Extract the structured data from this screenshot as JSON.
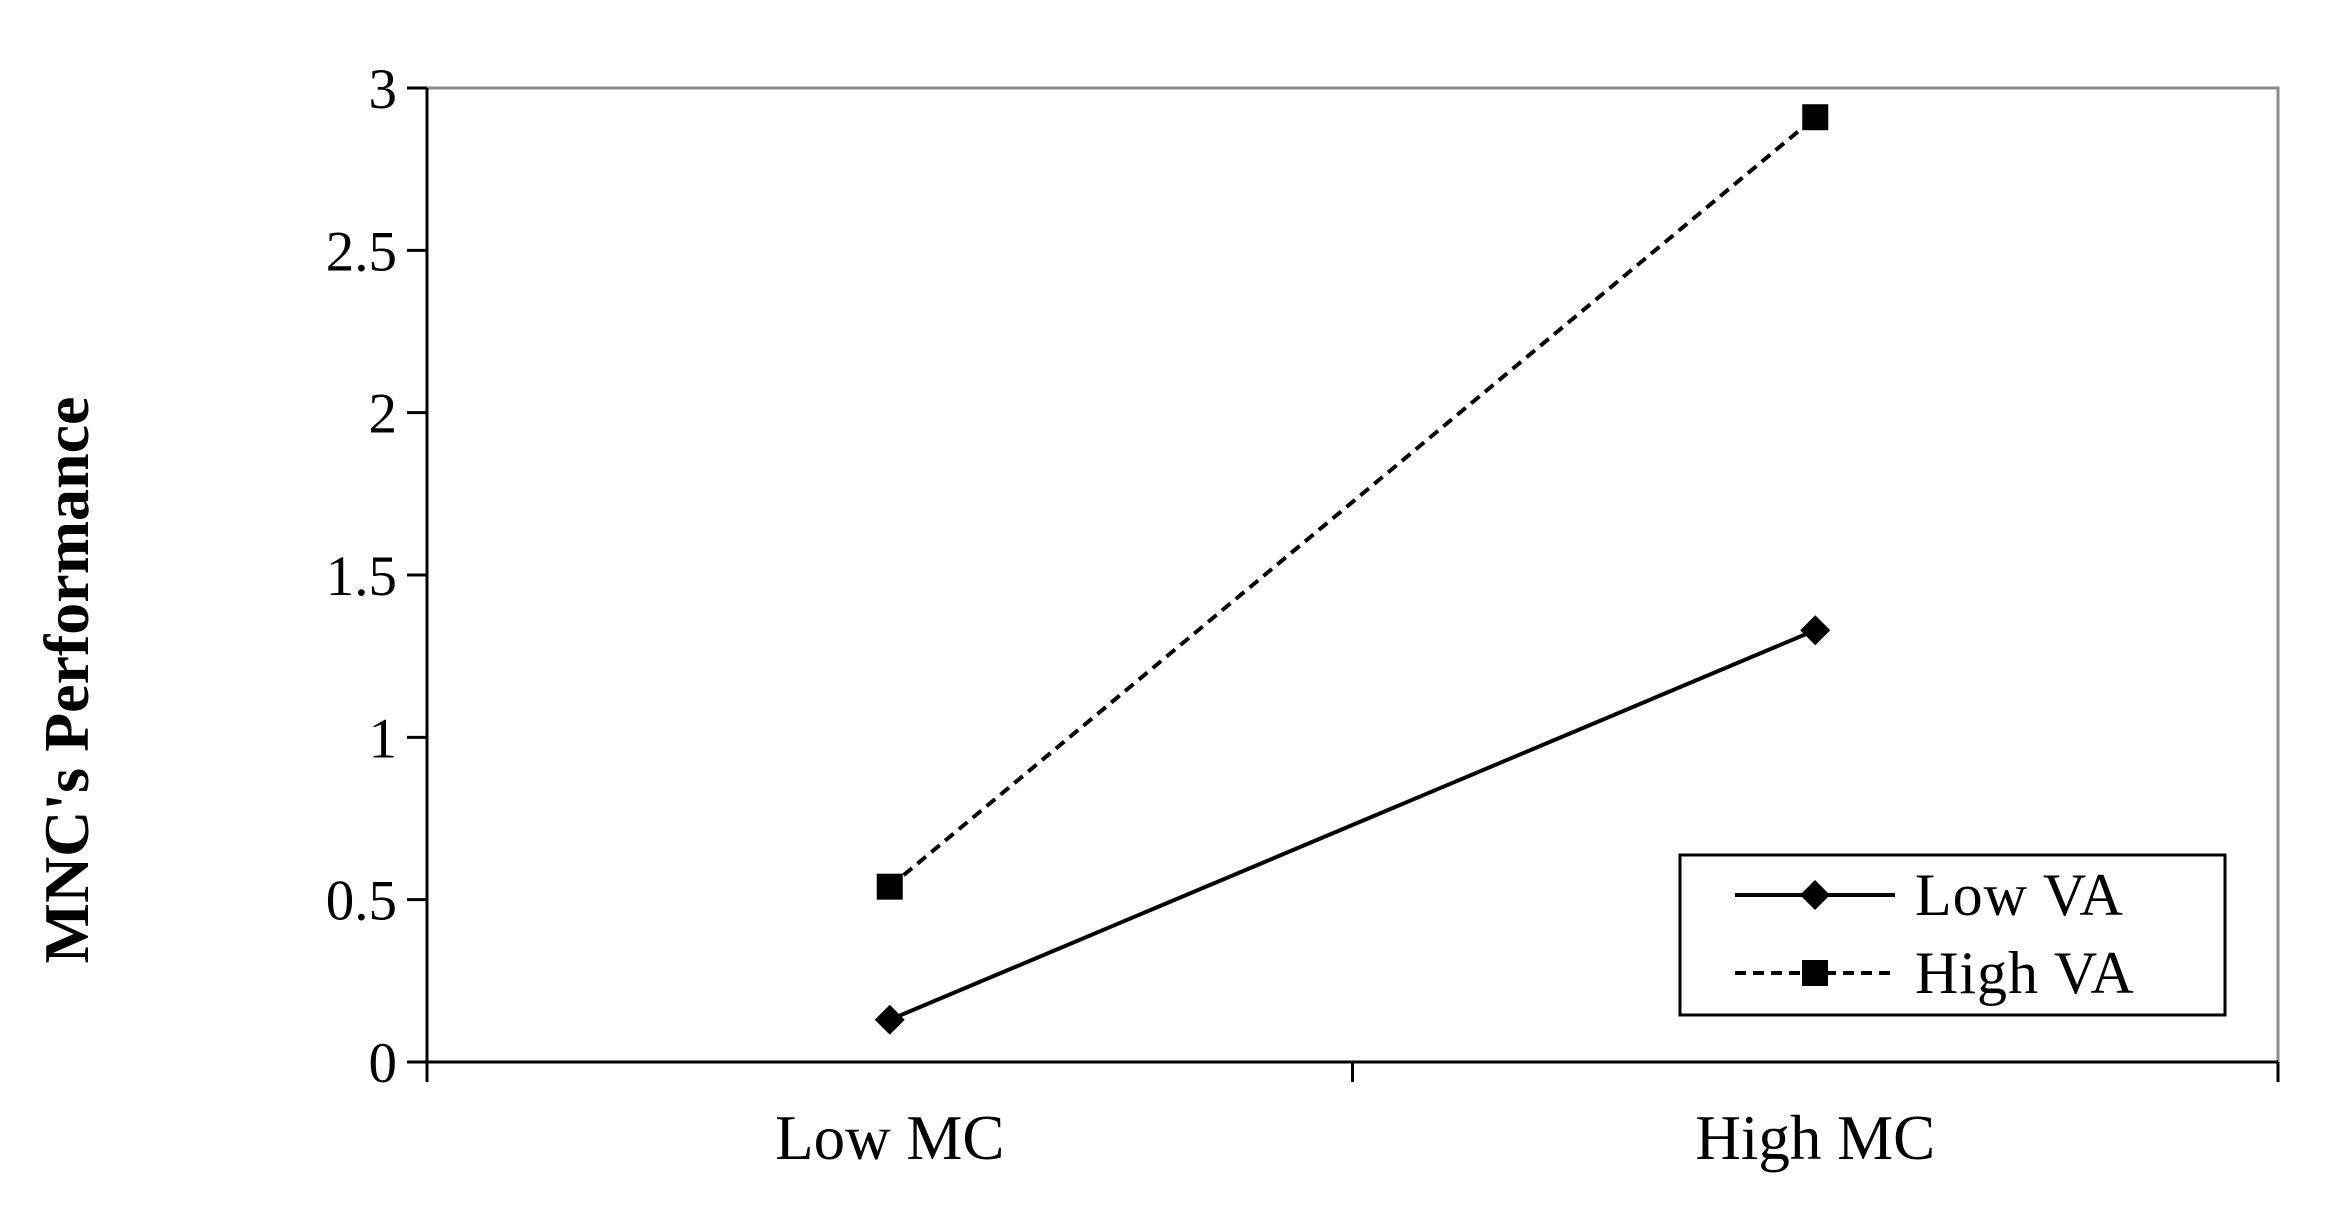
{
  "chart_data": {
    "type": "line",
    "categories": [
      "Low MC",
      "High MC"
    ],
    "ylabel": "MNC's Performance",
    "xlabel": "",
    "ylim": [
      0,
      3
    ],
    "yticks": [
      {
        "value": 0,
        "label": "0"
      },
      {
        "value": 0.5,
        "label": "0.5"
      },
      {
        "value": 1,
        "label": "1"
      },
      {
        "value": 1.5,
        "label": "1.5"
      },
      {
        "value": 2,
        "label": "2"
      },
      {
        "value": 2.5,
        "label": "2.5"
      },
      {
        "value": 3,
        "label": "3"
      }
    ],
    "grid": false,
    "legend_position": "bottom-right",
    "series": [
      {
        "name": "Low VA",
        "values": [
          0.13,
          1.33
        ],
        "marker": "diamond",
        "line_style": "solid",
        "color": "#000000"
      },
      {
        "name": "High VA",
        "values": [
          0.54,
          2.91
        ],
        "marker": "square",
        "line_style": "dashed",
        "color": "#000000"
      }
    ]
  }
}
